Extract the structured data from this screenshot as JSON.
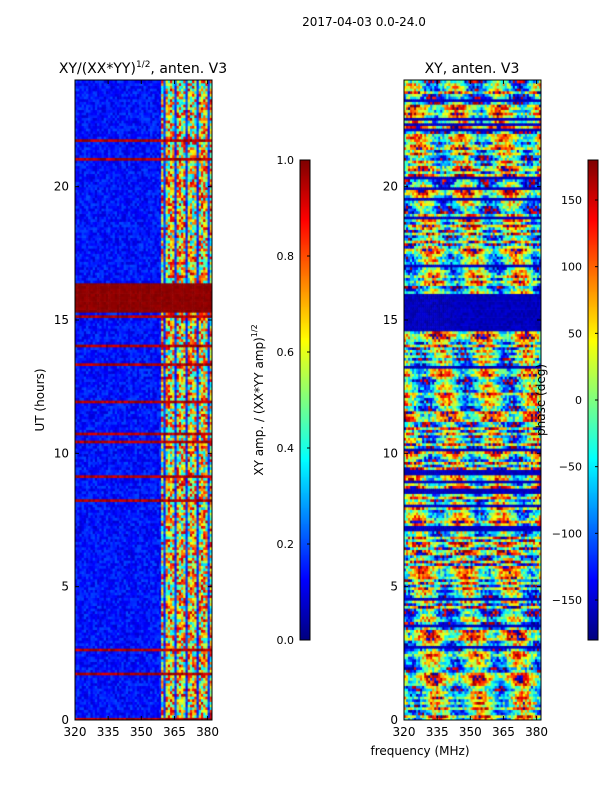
{
  "figure": {
    "suptitle": "2017-04-03 0.0-24.0",
    "shared_xlabel": "frequency (MHz)"
  },
  "chart_data": [
    {
      "type": "heatmap",
      "title": "XY/(XX*YY)",
      "title_exponent": "1/2",
      "title_suffix": ", anten. V3",
      "xlabel": "",
      "ylabel": "UT (hours)",
      "xlim": [
        320,
        382
      ],
      "ylim": [
        0,
        24
      ],
      "x_ticks": [
        "320",
        "335",
        "350",
        "365",
        "380"
      ],
      "x_tick_values": [
        320,
        335,
        350,
        365,
        380
      ],
      "y_ticks": [
        "0",
        "5",
        "10",
        "15",
        "20"
      ],
      "y_tick_values": [
        0,
        5,
        10,
        15,
        20
      ],
      "colormap": "jet",
      "colorbar": {
        "label": "XY amp. / (XX*YY amp)",
        "label_exponent": "1/2",
        "range": [
          0,
          1
        ],
        "ticks": [
          "0.0",
          "0.2",
          "0.4",
          "0.6",
          "0.8",
          "1.0"
        ],
        "tick_values": [
          0,
          0.2,
          0.4,
          0.6,
          0.8,
          1.0
        ]
      },
      "saturated_ut_band": [
        15.3,
        16.4
      ],
      "active_freq_band": [
        359,
        382
      ]
    },
    {
      "type": "heatmap",
      "title": "XY, anten. V3",
      "xlabel": "frequency (MHz)",
      "ylabel": "",
      "xlim": [
        320,
        382
      ],
      "ylim": [
        0,
        24
      ],
      "x_ticks": [
        "320",
        "335",
        "350",
        "365",
        "380"
      ],
      "x_tick_values": [
        320,
        335,
        350,
        365,
        380
      ],
      "y_ticks": [
        "0",
        "5",
        "10",
        "15",
        "20"
      ],
      "y_tick_values": [
        0,
        5,
        10,
        15,
        20
      ],
      "colormap": "jet",
      "colorbar": {
        "label": "phase (deg)",
        "range": [
          -180,
          180
        ],
        "ticks": [
          "−150",
          "−100",
          "−50",
          "0",
          "50",
          "100",
          "150"
        ],
        "tick_values": [
          -150,
          -100,
          -50,
          0,
          50,
          100,
          150
        ]
      },
      "blank_ut_band": [
        14.6,
        16.0
      ]
    }
  ]
}
